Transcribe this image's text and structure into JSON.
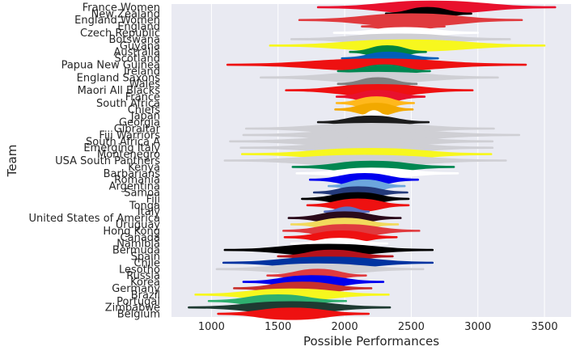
{
  "chart_data": {
    "type": "violin",
    "orientation": "horizontal",
    "title": "",
    "xlabel": "Possible Performances",
    "ylabel": "Team",
    "xlim": [
      700,
      3700
    ],
    "xticks": [
      1000,
      1500,
      2000,
      2500,
      3000,
      3500
    ],
    "grid": true,
    "background": "#E9EAF2",
    "categories": [
      "France Women",
      "New Zealand",
      "England Women",
      "England",
      "Czech Republic",
      "Botswana",
      "Guyana",
      "Australia",
      "Scotland",
      "Papua New Guinea",
      "Ireland",
      "England Saxons",
      "Wales",
      "Maori All Blacks",
      "France",
      "South Africa",
      "Chiefs",
      "Japan",
      "Georgia",
      "Gibraltar",
      "Fiji Warriors",
      "South Africa A",
      "Emerging Italy",
      "Montenegro",
      "USA South Panthers",
      "Kenya",
      "Barbarians",
      "Romania",
      "Argentina",
      "Samoa",
      "Fiji",
      "Tonga",
      "Italy",
      "United States of America",
      "Uruguay",
      "Hong Kong",
      "Canada",
      "Namibia",
      "Bermuda",
      "Spain",
      "Chile",
      "Lesotho",
      "Russia",
      "Korea",
      "Germany",
      "Brazil",
      "Portugal",
      "Zimbabwe",
      "Belgium"
    ],
    "violins": [
      {
        "team": "France Women",
        "min": 1800,
        "max": 3580,
        "center": 2650,
        "width": 0.55,
        "color": "#E8112D"
      },
      {
        "team": "New Zealand",
        "min": 2310,
        "max": 2950,
        "center": 2620,
        "width": 0.55,
        "color": "#000000"
      },
      {
        "team": "England Women",
        "min": 1660,
        "max": 3330,
        "center": 2500,
        "width": 0.55,
        "color": "#E03A3E"
      },
      {
        "team": "England",
        "min": 2130,
        "max": 2750,
        "center": 2450,
        "width": 0.55,
        "color": "#E03A3E"
      },
      {
        "team": "Czech Republic",
        "min": 1920,
        "max": 3000,
        "center": 2450,
        "width": 0.45,
        "color": "#FFFFFF"
      },
      {
        "team": "Botswana",
        "min": 1600,
        "max": 3240,
        "center": 2400,
        "width": 0.45,
        "color": "#CFCFD4"
      },
      {
        "team": "Guyana",
        "min": 1440,
        "max": 3500,
        "center": 2450,
        "width": 0.5,
        "color": "#F7F71E"
      },
      {
        "team": "Australia",
        "min": 2040,
        "max": 2610,
        "center": 2320,
        "width": 0.55,
        "color": "#00843D"
      },
      {
        "team": "Scotland",
        "min": 1980,
        "max": 2700,
        "center": 2330,
        "width": 0.55,
        "color": "#005EB8"
      },
      {
        "team": "Papua New Guinea",
        "min": 1120,
        "max": 3360,
        "center": 2250,
        "width": 0.5,
        "color": "#EE1111"
      },
      {
        "team": "Ireland",
        "min": 1950,
        "max": 2640,
        "center": 2300,
        "width": 0.55,
        "color": "#008751"
      },
      {
        "team": "England Saxons",
        "min": 1370,
        "max": 3150,
        "center": 2250,
        "width": 0.45,
        "color": "#CFCFD4"
      },
      {
        "team": "Wales",
        "min": 1950,
        "max": 2540,
        "center": 2250,
        "width": 0.55,
        "color": "#808080"
      },
      {
        "team": "Maori All Blacks",
        "min": 1560,
        "max": 2960,
        "center": 2250,
        "width": 0.5,
        "color": "#EE1111"
      },
      {
        "team": "France",
        "min": 1940,
        "max": 2600,
        "center": 2250,
        "width": 0.55,
        "color": "#E8112D"
      },
      {
        "team": "South Africa",
        "min": 1940,
        "max": 2520,
        "center": 2240,
        "width": 0.55,
        "color": "#FFB81C"
      },
      {
        "team": "Chiefs",
        "min": 1930,
        "max": 2510,
        "center": 2240,
        "width": 0.55,
        "color": "#F2A900"
      },
      {
        "team": "Japan",
        "min": 2120,
        "max": 2320,
        "center": 2220,
        "width": 0.45,
        "color": "#FFFFFF"
      },
      {
        "team": "Georgia",
        "min": 1800,
        "max": 2630,
        "center": 2200,
        "width": 0.55,
        "color": "#1C1C1C"
      },
      {
        "team": "Gibraltar",
        "min": 1260,
        "max": 3120,
        "center": 2200,
        "width": 0.45,
        "color": "#CFCFD4"
      },
      {
        "team": "Fiji Warriors",
        "min": 1240,
        "max": 3310,
        "center": 2250,
        "width": 0.45,
        "color": "#CFCFD4"
      },
      {
        "team": "South Africa A",
        "min": 1140,
        "max": 3110,
        "center": 2200,
        "width": 0.45,
        "color": "#CFCFD4"
      },
      {
        "team": "Emerging Italy",
        "min": 1220,
        "max": 3110,
        "center": 2200,
        "width": 0.45,
        "color": "#CFCFD4"
      },
      {
        "team": "Montenegro",
        "min": 1230,
        "max": 3100,
        "center": 2200,
        "width": 0.5,
        "color": "#F7F71E"
      },
      {
        "team": "USA South Panthers",
        "min": 1100,
        "max": 3210,
        "center": 2150,
        "width": 0.45,
        "color": "#CFCFD4"
      },
      {
        "team": "Kenya",
        "min": 1610,
        "max": 2820,
        "center": 2200,
        "width": 0.5,
        "color": "#008751"
      },
      {
        "team": "Barbarians",
        "min": 1640,
        "max": 2850,
        "center": 2200,
        "width": 0.45,
        "color": "#FFFFFF"
      },
      {
        "team": "Romania",
        "min": 1740,
        "max": 2550,
        "center": 2150,
        "width": 0.55,
        "color": "#0000EE"
      },
      {
        "team": "Argentina",
        "min": 1880,
        "max": 2450,
        "center": 2150,
        "width": 0.55,
        "color": "#6CA6DE"
      },
      {
        "team": "Samoa",
        "min": 1770,
        "max": 2470,
        "center": 2100,
        "width": 0.5,
        "color": "#243A7A"
      },
      {
        "team": "Fiji",
        "min": 1680,
        "max": 2480,
        "center": 2100,
        "width": 0.55,
        "color": "#000000"
      },
      {
        "team": "Tonga",
        "min": 1720,
        "max": 2480,
        "center": 2100,
        "width": 0.55,
        "color": "#EE1111"
      },
      {
        "team": "Italy",
        "min": 1850,
        "max": 2180,
        "center": 2020,
        "width": 0.4,
        "color": "#5A6FC0"
      },
      {
        "team": "United States of America",
        "min": 1580,
        "max": 2420,
        "center": 2000,
        "width": 0.55,
        "color": "#2A0A1A"
      },
      {
        "team": "Uruguay",
        "min": 1600,
        "max": 2400,
        "center": 2000,
        "width": 0.55,
        "color": "#F2D95C"
      },
      {
        "team": "Hong Kong",
        "min": 1540,
        "max": 2560,
        "center": 2000,
        "width": 0.55,
        "color": "#E03A3E"
      },
      {
        "team": "Canada",
        "min": 1550,
        "max": 2390,
        "center": 1980,
        "width": 0.55,
        "color": "#EE1111"
      },
      {
        "team": "Namibia",
        "min": 1600,
        "max": 2320,
        "center": 1960,
        "width": 0.45,
        "color": "#FFFFFF"
      },
      {
        "team": "Bermuda",
        "min": 1100,
        "max": 2660,
        "center": 1880,
        "width": 0.5,
        "color": "#000000"
      },
      {
        "team": "Spain",
        "min": 1500,
        "max": 2360,
        "center": 1900,
        "width": 0.55,
        "color": "#B5121B"
      },
      {
        "team": "Chile",
        "min": 1090,
        "max": 2660,
        "center": 1880,
        "width": 0.5,
        "color": "#0033A0"
      },
      {
        "team": "Lesotho",
        "min": 1040,
        "max": 2590,
        "center": 1800,
        "width": 0.45,
        "color": "#CFCFD4"
      },
      {
        "team": "Russia",
        "min": 1420,
        "max": 2160,
        "center": 1800,
        "width": 0.55,
        "color": "#E03A3E"
      },
      {
        "team": "Korea",
        "min": 1240,
        "max": 2290,
        "center": 1750,
        "width": 0.55,
        "color": "#0000EE"
      },
      {
        "team": "Germany",
        "min": 1170,
        "max": 2200,
        "center": 1680,
        "width": 0.55,
        "color": "#C8302C"
      },
      {
        "team": "Brazil",
        "min": 880,
        "max": 2330,
        "center": 1600,
        "width": 0.5,
        "color": "#F7F71E"
      },
      {
        "team": "Portugal",
        "min": 980,
        "max": 2010,
        "center": 1500,
        "width": 0.55,
        "color": "#2EAF6F"
      },
      {
        "team": "Zimbabwe",
        "min": 830,
        "max": 2340,
        "center": 1600,
        "width": 0.5,
        "color": "#1E3A32"
      },
      {
        "team": "Belgium",
        "min": 1050,
        "max": 2180,
        "center": 1600,
        "width": 0.5,
        "color": "#EE1111"
      }
    ]
  }
}
